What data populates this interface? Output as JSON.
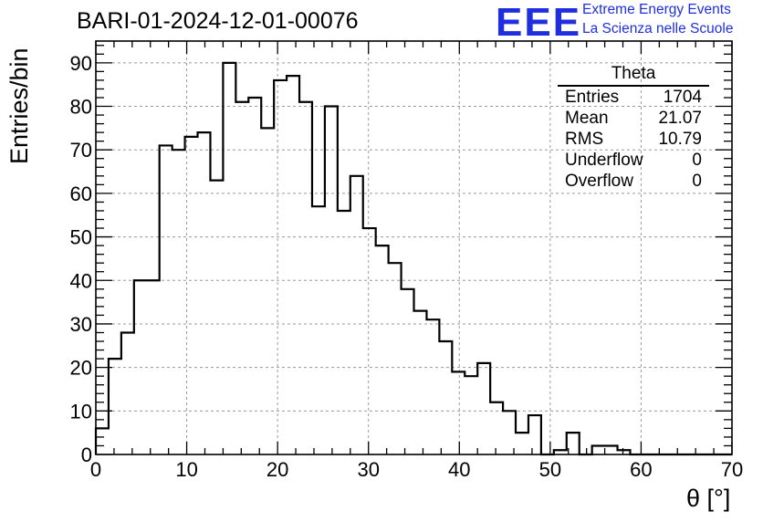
{
  "title": "BARI-01-2024-12-01-00076",
  "logo": {
    "mark": "EEE",
    "line1": "Extreme Energy Events",
    "line2": "La Scienza nelle Scuole",
    "color": "#1f2fe0"
  },
  "stats": {
    "title": "Theta",
    "rows": [
      {
        "key": "Entries",
        "value": "1704"
      },
      {
        "key": "Mean",
        "value": "21.07"
      },
      {
        "key": "RMS",
        "value": "10.79"
      },
      {
        "key": "Underflow",
        "value": "0"
      },
      {
        "key": "Overflow",
        "value": "0"
      }
    ]
  },
  "chart_data": {
    "type": "bar",
    "histogram": true,
    "title": "BARI-01-2024-12-01-00076",
    "xlabel": "θ [°]",
    "ylabel": "Entries/bin",
    "xlim": [
      0,
      70
    ],
    "ylim": [
      0,
      95
    ],
    "xticks": [
      0,
      10,
      20,
      30,
      40,
      50,
      60,
      70
    ],
    "yticks": [
      0,
      10,
      20,
      30,
      40,
      50,
      60,
      70,
      80,
      90
    ],
    "grid": true,
    "bin_width": 1.4,
    "values": [
      6,
      22,
      28,
      40,
      40,
      71,
      70,
      73,
      74,
      63,
      90,
      81,
      82,
      75,
      86,
      87,
      81,
      57,
      80,
      56,
      64,
      52,
      48,
      44,
      38,
      33,
      31,
      26,
      19,
      18,
      21,
      12,
      10,
      5,
      9,
      0,
      1,
      5,
      0,
      2,
      2,
      1,
      0,
      0,
      0,
      0,
      0,
      0,
      0,
      0
    ],
    "line_color": "#000000",
    "grid_color": "#9a9a9a"
  }
}
